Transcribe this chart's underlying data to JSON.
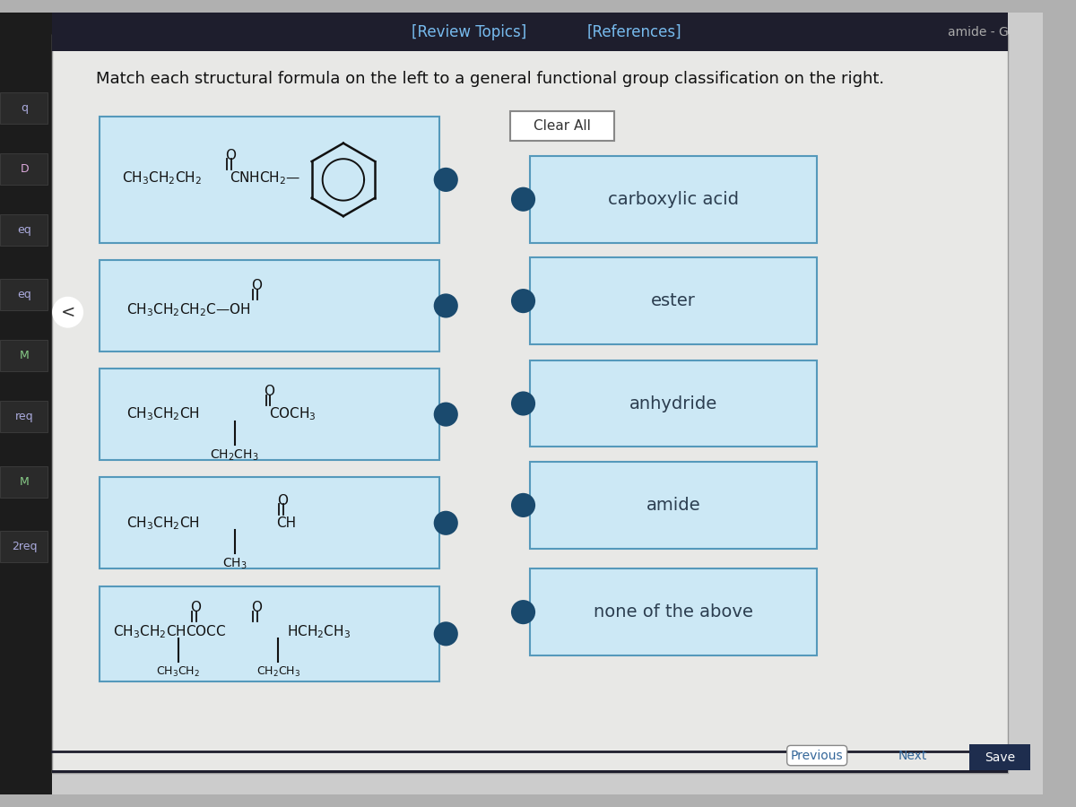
{
  "title": "Match each structural formula on the left to a general functional group classification on the right.",
  "review_topics": "[Review Topics]",
  "references": "[References]",
  "clear_all_text": "Clear All",
  "bg_outer": "#b0b0b0",
  "bg_left_sidebar": "#2a2a2a",
  "bg_content": "#e8e8e8",
  "bg_topbar": "#1a1a2e",
  "nav_link_color": "#66aadd",
  "box_fill": "#cce8f4",
  "box_border": "#4a90b8",
  "dot_fill": "#1a5276",
  "text_dark": "#222222",
  "text_label": "#2c3e50",
  "sidebar_items": [
    "q",
    "D",
    "eq",
    "eq",
    "M",
    "req",
    "M",
    "2req"
  ],
  "right_labels": [
    "carboxylic acid",
    "ester",
    "anhydride",
    "amide",
    "none of the above"
  ],
  "previous_text": "Previous",
  "next_text": "Next",
  "save_text": "Save"
}
